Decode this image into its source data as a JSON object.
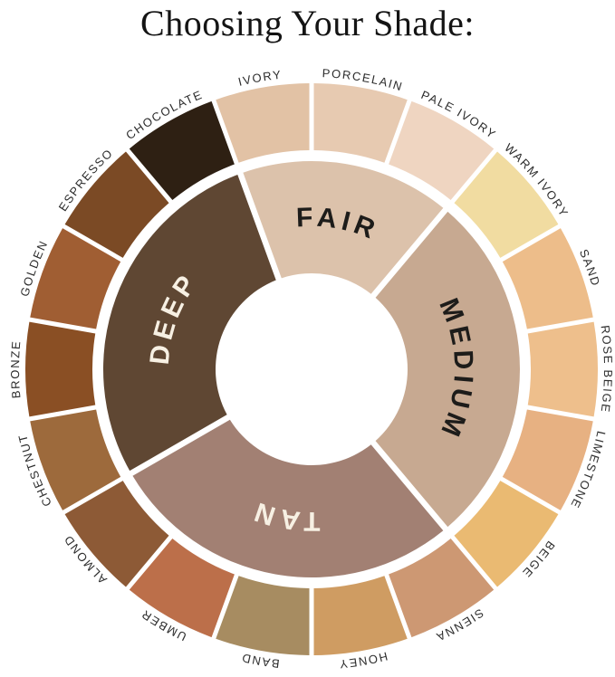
{
  "title": "Choosing Your Shade:",
  "chart_data": {
    "type": "pie",
    "subtype": "sunburst-donut",
    "title": "Choosing Your Shade:",
    "angle_unit": "degrees clockwise from 12 o'clock",
    "background": "#ffffff",
    "outer_label_color": "#2c2c2c",
    "inner_ring": [
      {
        "label": "FAIR",
        "start_angle": -20,
        "end_angle": 40,
        "color": "#dcc2ab",
        "text_color": "#1d1c1a"
      },
      {
        "label": "MEDIUM",
        "start_angle": 40,
        "end_angle": 140,
        "color": "#c7a991",
        "text_color": "#1d1c1a"
      },
      {
        "label": "TAN",
        "start_angle": 140,
        "end_angle": 240,
        "color": "#a28073",
        "text_color": "#f7f0e3"
      },
      {
        "label": "DEEP",
        "start_angle": 240,
        "end_angle": 340,
        "color": "#5f4733",
        "text_color": "#f7f0e3"
      }
    ],
    "outer_ring": [
      {
        "label": "IVORY",
        "category": "FAIR",
        "start_angle": -20,
        "end_angle": 0,
        "color": "#e2c2a5"
      },
      {
        "label": "PORCELAIN",
        "category": "FAIR",
        "start_angle": 0,
        "end_angle": 20,
        "color": "#e7cab1"
      },
      {
        "label": "PALE IVORY",
        "category": "FAIR",
        "start_angle": 20,
        "end_angle": 40,
        "color": "#efd5c1"
      },
      {
        "label": "WARM IVORY",
        "category": "MEDIUM",
        "start_angle": 40,
        "end_angle": 60,
        "color": "#f1dca1"
      },
      {
        "label": "SAND",
        "category": "MEDIUM",
        "start_angle": 60,
        "end_angle": 80,
        "color": "#edbd8a"
      },
      {
        "label": "ROSE BEIGE",
        "category": "MEDIUM",
        "start_angle": 80,
        "end_angle": 100,
        "color": "#eebf8c"
      },
      {
        "label": "LIMESTONE",
        "category": "MEDIUM",
        "start_angle": 100,
        "end_angle": 120,
        "color": "#e7b182"
      },
      {
        "label": "BEIGE",
        "category": "MEDIUM",
        "start_angle": 120,
        "end_angle": 140,
        "color": "#eaba72"
      },
      {
        "label": "SIENNA",
        "category": "TAN",
        "start_angle": 140,
        "end_angle": 160,
        "color": "#cd9873"
      },
      {
        "label": "HONEY",
        "category": "TAN",
        "start_angle": 160,
        "end_angle": 180,
        "color": "#cf9c62"
      },
      {
        "label": "BAND",
        "category": "TAN",
        "start_angle": 180,
        "end_angle": 200,
        "color": "#a78c61"
      },
      {
        "label": "UMBER",
        "category": "TAN",
        "start_angle": 200,
        "end_angle": 220,
        "color": "#bc6f4a"
      },
      {
        "label": "ALMOND",
        "category": "TAN",
        "start_angle": 220,
        "end_angle": 240,
        "color": "#8d5a36"
      },
      {
        "label": "CHESTNUT",
        "category": "DEEP",
        "start_angle": 240,
        "end_angle": 260,
        "color": "#9d6a3c"
      },
      {
        "label": "BRONZE",
        "category": "DEEP",
        "start_angle": 260,
        "end_angle": 280,
        "color": "#8a4f24"
      },
      {
        "label": "GOLDEN",
        "category": "DEEP",
        "start_angle": 280,
        "end_angle": 300,
        "color": "#a05e33"
      },
      {
        "label": "ESPRESSO",
        "category": "DEEP",
        "start_angle": 300,
        "end_angle": 320,
        "color": "#7b4a25"
      },
      {
        "label": "CHOCOLATE",
        "category": "DEEP",
        "start_angle": 320,
        "end_angle": 340,
        "color": "#2e2013"
      }
    ]
  }
}
